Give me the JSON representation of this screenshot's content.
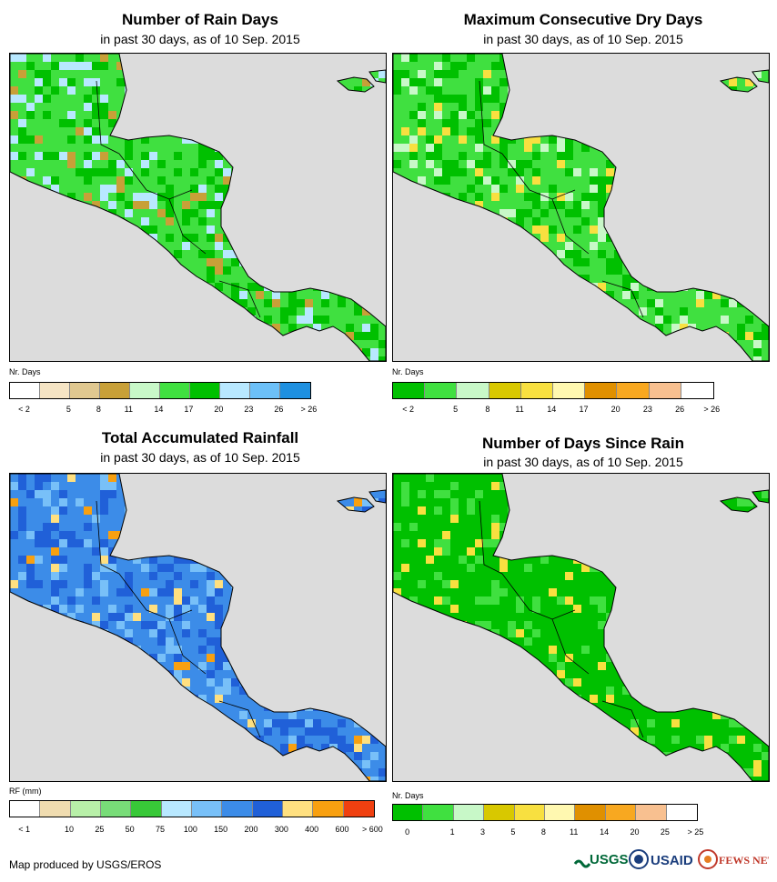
{
  "panels": [
    {
      "title": "Number of Rain Days",
      "subtitle": "in past 30 days, as of 10 Sep. 2015",
      "legend_label": "Nr. Days",
      "legend_colors": [
        "#ffffff",
        "#f5e4c4",
        "#e0c890",
        "#c8a038",
        "#c8f8c8",
        "#40e040",
        "#00c000",
        "#b8e8ff",
        "#6cc0f8",
        "#1e90e0"
      ],
      "legend_ticks": [
        "< 2",
        "5",
        "8",
        "11",
        "14",
        "17",
        "20",
        "23",
        "26",
        "> 26"
      ],
      "dominant": [
        "#40e040",
        "#00c000",
        "#b8e8ff",
        "#c8a038"
      ]
    },
    {
      "title": "Maximum Consecutive Dry Days",
      "subtitle": "in past 30 days, as of 10 Sep. 2015",
      "legend_label": "Nr. Days",
      "legend_colors": [
        "#00c000",
        "#40e040",
        "#c8f8c8",
        "#d8c800",
        "#f8e040",
        "#fff8b0",
        "#e09000",
        "#f8a820",
        "#f8c090",
        "#ffffff"
      ],
      "legend_ticks": [
        "< 2",
        "5",
        "8",
        "11",
        "14",
        "17",
        "20",
        "23",
        "26",
        "> 26"
      ],
      "dominant": [
        "#40e040",
        "#00c000",
        "#c8f8c8",
        "#f8e040"
      ]
    },
    {
      "title": "Total Accumulated Rainfall",
      "subtitle": "in past 30 days, as of 10 Sep. 2015",
      "legend_label": "RF (mm)",
      "legend_colors": [
        "#ffffff",
        "#f0dcb0",
        "#b8f0a8",
        "#78dc78",
        "#38c838",
        "#b8e8ff",
        "#78c0f8",
        "#3c8ce8",
        "#2060d8",
        "#ffe080",
        "#f8a010",
        "#f04010"
      ],
      "legend_ticks": [
        "< 1",
        "10",
        "25",
        "50",
        "75",
        "100",
        "150",
        "200",
        "300",
        "400",
        "600",
        "> 600"
      ],
      "dominant": [
        "#3c8ce8",
        "#2060d8",
        "#78c0f8",
        "#ffe080",
        "#f8a010"
      ]
    },
    {
      "title": "Number of Days Since Rain",
      "subtitle": "in past 30 days, as of 10 Sep. 2015",
      "legend_label": "Nr. Days",
      "legend_colors": [
        "#00c000",
        "#40e040",
        "#c8f8c8",
        "#d8c800",
        "#f8e040",
        "#fff8b0",
        "#e09000",
        "#f8a820",
        "#f8c090",
        "#ffffff"
      ],
      "legend_ticks": [
        "0",
        "1",
        "3",
        "5",
        "8",
        "11",
        "14",
        "20",
        "25",
        "> 25"
      ],
      "dominant": [
        "#00c000",
        "#00c000",
        "#40e040",
        "#f8e040"
      ]
    }
  ],
  "footer": {
    "credit": "Map produced by USGS/EROS",
    "logo_usgs": "USGS",
    "logo_usaid": "USAID",
    "logo_fewsnet": "FEWS NET"
  }
}
